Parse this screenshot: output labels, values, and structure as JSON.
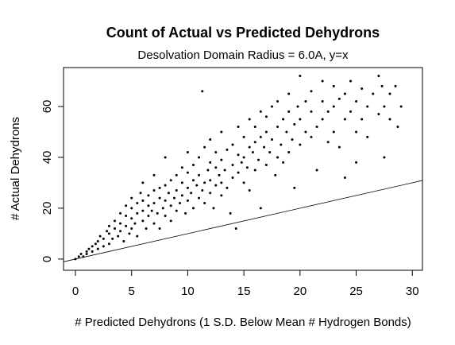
{
  "chart_data": {
    "type": "scatter",
    "title": "Count of Actual vs Predicted Dehydrons",
    "subtitle": "Desolvation Domain Radius = 6.0A, y=x",
    "x_label": "# Predicted Dehydrons (1 S.D. Below Mean # Hydrogen Bonds)",
    "y_label": "# Actual Dehydrons",
    "color": "#000000",
    "xlim": [
      -1.06,
      30.9
    ],
    "ylim": [
      -4.4,
      75.3
    ],
    "xticks": [
      0,
      5,
      10,
      15,
      20,
      25,
      30
    ],
    "yticks": [
      0,
      20,
      40,
      60
    ],
    "x": [
      0,
      0.3,
      0.5,
      0.7,
      1,
      1,
      1.2,
      1.5,
      1.5,
      1.8,
      2,
      2,
      2.2,
      2.5,
      2.5,
      2.8,
      3,
      3,
      3,
      3.3,
      3.5,
      3.5,
      3.8,
      4,
      4,
      4,
      4.3,
      4.5,
      4.5,
      4.5,
      4.8,
      5,
      5,
      5,
      5,
      5.3,
      5.5,
      5.5,
      5.5,
      5.8,
      6,
      6,
      6,
      6,
      6.3,
      6.5,
      6.5,
      6.5,
      6.8,
      7,
      7,
      7,
      7,
      7.3,
      7.5,
      7.5,
      7.5,
      7.8,
      8,
      8,
      8,
      8,
      8.3,
      8.5,
      8.5,
      8.5,
      8.8,
      9,
      9,
      9,
      9.3,
      9.5,
      9.5,
      9.5,
      9.8,
      10,
      10,
      10,
      10,
      10.3,
      10.5,
      10.5,
      10.5,
      10.8,
      11,
      11,
      11,
      11.3,
      11.5,
      11.5,
      11.5,
      11.8,
      12,
      12,
      12,
      12,
      12.3,
      12.5,
      12.5,
      12.5,
      12.8,
      13,
      13,
      13,
      13,
      13.3,
      13.5,
      13.5,
      13.8,
      14,
      14,
      14,
      14.3,
      14.5,
      14.5,
      14.5,
      14.8,
      15,
      15,
      15,
      15.3,
      15.5,
      15.5,
      15.5,
      15.8,
      16,
      16,
      16,
      16.3,
      16.5,
      16.5,
      16.5,
      16.8,
      17,
      17,
      17,
      17.3,
      17.5,
      17.5,
      17.8,
      18,
      18,
      18,
      18.3,
      18.5,
      18.5,
      18.8,
      19,
      19,
      19,
      19.3,
      19.5,
      19.5,
      19.8,
      20,
      20,
      20,
      20.5,
      20.5,
      21,
      21,
      21,
      21.5,
      21.5,
      22,
      22,
      22,
      22.5,
      22.5,
      23,
      23,
      23,
      23.5,
      23.5,
      24,
      24,
      24,
      24.5,
      24.5,
      25,
      25,
      25,
      25.5,
      25.5,
      26,
      26,
      26.5,
      27,
      27,
      27.3,
      27.5,
      27.5,
      28,
      28,
      28.5,
      28.7,
      29,
      11.3
    ],
    "values": [
      0,
      1,
      2,
      1,
      3,
      2,
      4,
      3,
      5,
      6,
      4,
      7,
      9,
      5,
      8,
      11,
      6,
      10,
      13,
      8,
      12,
      15,
      9,
      11,
      14,
      18,
      7,
      13,
      17,
      21,
      10,
      12,
      16,
      20,
      24,
      14,
      18,
      22,
      9,
      26,
      15,
      19,
      23,
      30,
      12,
      17,
      21,
      25,
      19,
      14,
      22,
      27,
      33,
      18,
      24,
      28,
      12,
      20,
      17,
      23,
      29,
      40,
      26,
      15,
      21,
      31,
      24,
      19,
      27,
      33,
      22,
      25,
      30,
      36,
      18,
      23,
      28,
      34,
      42,
      26,
      20,
      31,
      37,
      29,
      24,
      33,
      40,
      27,
      30,
      22,
      44,
      35,
      26,
      31,
      38,
      47,
      20,
      29,
      36,
      42,
      33,
      25,
      30,
      39,
      50,
      35,
      28,
      43,
      18,
      32,
      37,
      45,
      12,
      34,
      41,
      52,
      38,
      30,
      40,
      48,
      36,
      44,
      55,
      27,
      42,
      35,
      46,
      52,
      39,
      48,
      58,
      20,
      44,
      37,
      50,
      56,
      42,
      47,
      60,
      33,
      40,
      52,
      62,
      45,
      38,
      55,
      50,
      42,
      58,
      65,
      47,
      53,
      28,
      60,
      45,
      55,
      72,
      50,
      62,
      48,
      58,
      66,
      52,
      35,
      55,
      62,
      70,
      46,
      58,
      50,
      60,
      68,
      44,
      63,
      55,
      65,
      32,
      58,
      70,
      50,
      62,
      38,
      55,
      67,
      60,
      48,
      65,
      57,
      72,
      68,
      60,
      40,
      65,
      55,
      68,
      52,
      60,
      66
    ]
  }
}
